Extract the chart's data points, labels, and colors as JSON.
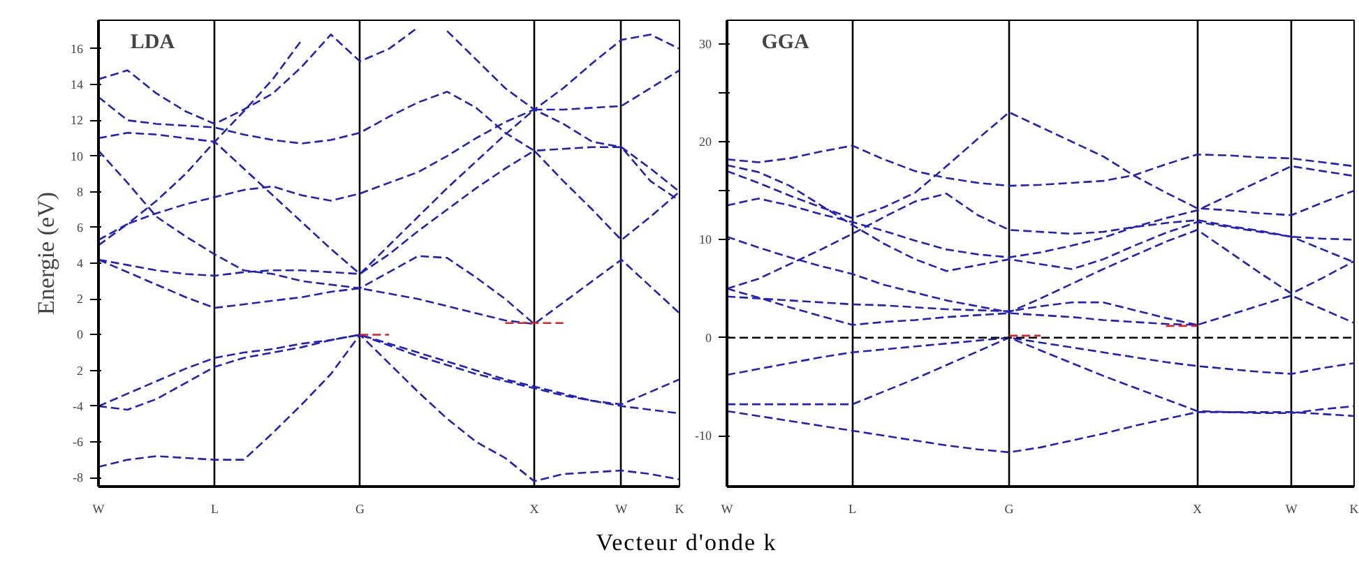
{
  "chart_data": [
    {
      "type": "line",
      "title": "LDA",
      "xlabel": "Vecteur d'onde k",
      "ylabel": "Energie (eV)",
      "line_style": "dashed",
      "grid": "x",
      "categories": [
        "W",
        null,
        null,
        null,
        "L",
        null,
        null,
        null,
        null,
        "G",
        null,
        null,
        null,
        null,
        null,
        "X",
        null,
        null,
        "W",
        null,
        "K"
      ],
      "ylim": [
        -8.5,
        17.6
      ],
      "yticks": [
        -8,
        -6,
        -4,
        {
          "value": -2,
          "label": "2"
        },
        0,
        2,
        4,
        6,
        8,
        10,
        12,
        14,
        16
      ],
      "series": [
        {
          "color": "#2020c0",
          "values": [
            -7.4,
            -7.0,
            -6.8,
            -6.9,
            -7.0,
            -7.0,
            -5.5,
            -3.9,
            -2.2,
            0,
            -1.6,
            -3.2,
            -4.7,
            -6.0,
            -6.9,
            -8.2,
            -7.8,
            -7.7,
            -7.6,
            -7.8,
            -8.1
          ]
        },
        {
          "color": "#2020c0",
          "values": [
            -4.0,
            -3.3,
            -2.6,
            -1.9,
            -1.3,
            -1.0,
            -0.8,
            -0.5,
            -0.3,
            0,
            -0.5,
            -1.0,
            -1.5,
            -2.0,
            -2.5,
            -2.9,
            -3.3,
            -3.7,
            -4.0,
            -4.2,
            -4.4
          ]
        },
        {
          "color": "#2020c0",
          "values": [
            -4.0,
            -4.2,
            -3.6,
            -2.7,
            -1.8,
            -1.3,
            -1.0,
            -0.7,
            -0.3,
            0,
            -0.6,
            -1.2,
            -1.7,
            -2.2,
            -2.6,
            -3.0,
            -3.4,
            -3.7,
            -3.9,
            -3.2,
            -2.5
          ]
        },
        {
          "color": "#2020c0",
          "values": [
            4.2,
            3.5,
            2.8,
            2.1,
            1.5,
            1.7,
            1.9,
            2.1,
            2.4,
            2.6,
            2.3,
            2.0,
            1.6,
            1.2,
            0.8,
            0.6,
            1.8,
            3.0,
            4.2,
            2.7,
            1.2
          ]
        },
        {
          "color": "#2020c0",
          "values": [
            4.2,
            3.9,
            3.6,
            3.4,
            3.3,
            3.5,
            3.6,
            3.6,
            3.5,
            3.4,
            4.5,
            5.8,
            7.0,
            8.2,
            9.3,
            10.3,
            8.6,
            7.0,
            5.3,
            6.6,
            8.0
          ]
        },
        {
          "color": "#2020c0",
          "values": [
            5.3,
            6.2,
            7.5,
            9.0,
            10.8,
            12.5,
            14.3,
            16.5,
            null,
            null,
            null,
            null,
            null,
            null,
            null,
            null,
            null,
            null,
            null,
            null,
            null
          ]
        },
        {
          "color": "#2020c0",
          "values": [
            11.0,
            11.3,
            11.2,
            11.0,
            10.8,
            9.3,
            7.8,
            6.3,
            4.8,
            3.4,
            5.0,
            6.6,
            8.2,
            9.7,
            11.2,
            12.6,
            12.6,
            12.7,
            12.8,
            13.8,
            14.8
          ]
        },
        {
          "color": "#2020c0",
          "values": [
            10.3,
            8.5,
            6.6,
            5.5,
            4.5,
            3.6,
            3.4,
            3.0,
            2.8,
            2.6,
            3.5,
            4.4,
            4.3,
            3.2,
            2.0,
            0.6,
            null,
            null,
            null,
            null,
            null
          ]
        },
        {
          "color": "#2020c0",
          "values": [
            5.0,
            6.2,
            6.8,
            7.3,
            7.7,
            8.1,
            8.3,
            7.8,
            7.5,
            7.9,
            8.5,
            9.1,
            10.0,
            11.0,
            11.9,
            12.6,
            11.8,
            10.8,
            10.5,
            9.3,
            8.0
          ]
        },
        {
          "color": "#2020c0",
          "values": [
            13.3,
            12.0,
            11.8,
            11.7,
            11.6,
            11.2,
            10.9,
            10.7,
            10.9,
            11.3,
            12.2,
            13.0,
            13.6,
            12.7,
            11.3,
            10.3,
            10.4,
            10.5,
            10.5,
            8.6,
            7.5
          ]
        },
        {
          "color": "#2020c0",
          "values": [
            14.3,
            14.8,
            13.5,
            12.5,
            11.8,
            12.6,
            13.5,
            15.0,
            16.8,
            15.3,
            16.0,
            17.2,
            null,
            null,
            null,
            null,
            null,
            null,
            null,
            null,
            null
          ]
        },
        {
          "color": "#2020c0",
          "values": [
            null,
            null,
            null,
            null,
            null,
            null,
            null,
            null,
            null,
            null,
            null,
            null,
            17.0,
            15.4,
            13.8,
            12.6,
            13.8,
            15.2,
            16.5,
            16.8,
            16.0
          ]
        },
        {
          "color": "#e02020",
          "values": [
            null,
            null,
            null,
            null,
            null,
            null,
            null,
            null,
            null,
            0,
            0,
            null,
            null,
            null,
            null,
            null,
            null,
            null,
            null,
            null,
            null
          ]
        },
        {
          "color": "#e02020",
          "values": [
            null,
            null,
            null,
            null,
            null,
            null,
            null,
            null,
            null,
            null,
            null,
            null,
            null,
            null,
            0.65,
            0.65,
            0.65,
            null,
            null,
            null,
            null
          ]
        }
      ]
    },
    {
      "type": "line",
      "title": "GGA",
      "line_style": "dashed",
      "grid": "x",
      "categories": [
        "W",
        null,
        null,
        null,
        "L",
        null,
        null,
        null,
        null,
        "G",
        null,
        null,
        null,
        null,
        null,
        "X",
        null,
        null,
        "W",
        null,
        "K"
      ],
      "ylim": [
        -15.2,
        32.4
      ],
      "yticks": [
        -10,
        0,
        10,
        {
          "value": 15,
          "label": null
        },
        20,
        {
          "value": 25,
          "label": null
        },
        30
      ],
      "ref_lines": [
        {
          "axis": "y",
          "value": 0,
          "color": "#000000",
          "line_style": "dashed"
        }
      ],
      "series": [
        {
          "color": "#2020c0",
          "values": [
            -7.5,
            -8.0,
            -8.5,
            -9.0,
            -9.5,
            -10.0,
            -10.5,
            -11.0,
            -11.4,
            -11.7,
            -11.2,
            -10.5,
            -9.8,
            -9.0,
            -8.3,
            -7.6,
            -7.6,
            -7.6,
            -7.6,
            -7.8,
            -8.0
          ]
        },
        {
          "color": "#2020c0",
          "values": [
            -6.8,
            -6.8,
            -6.8,
            -6.8,
            -6.8,
            -5.5,
            -4.2,
            -2.8,
            -1.4,
            0,
            -1.3,
            -2.6,
            -3.9,
            -5.1,
            -6.3,
            -7.5,
            -7.6,
            -7.7,
            -7.7,
            -7.3,
            -7.0
          ]
        },
        {
          "color": "#2020c0",
          "values": [
            -3.8,
            -3.2,
            -2.6,
            -2.0,
            -1.5,
            -1.2,
            -0.9,
            -0.6,
            -0.3,
            0,
            -0.5,
            -1.0,
            -1.5,
            -2.0,
            -2.5,
            -2.9,
            -3.2,
            -3.5,
            -3.7,
            -3.1,
            -2.6
          ]
        },
        {
          "color": "#2020c0",
          "values": [
            5.0,
            4.1,
            3.1,
            2.2,
            1.3,
            1.6,
            1.8,
            2.1,
            2.3,
            2.5,
            2.3,
            2.1,
            1.8,
            1.6,
            1.4,
            1.3,
            2.3,
            3.3,
            4.3,
            2.9,
            1.5
          ]
        },
        {
          "color": "#2020c0",
          "values": [
            4.2,
            4.0,
            3.8,
            3.6,
            3.4,
            3.3,
            3.1,
            2.9,
            2.8,
            2.7,
            3.2,
            3.6,
            3.6,
            2.8,
            2.0,
            1.3,
            null,
            null,
            null,
            null,
            null
          ]
        },
        {
          "color": "#2020c0",
          "values": [
            5.0,
            6.0,
            7.5,
            9.0,
            10.6,
            12.3,
            13.9,
            14.7,
            12.5,
            11.0,
            10.8,
            10.6,
            10.8,
            11.3,
            11.7,
            12.0,
            11.4,
            10.9,
            10.3,
            9.0,
            7.7
          ]
        },
        {
          "color": "#2020c0",
          "values": [
            10.3,
            9.2,
            8.2,
            7.3,
            6.5,
            5.4,
            4.6,
            3.8,
            3.2,
            2.6,
            4.0,
            5.5,
            7.0,
            8.4,
            9.8,
            11.0,
            8.8,
            6.6,
            4.5,
            6.1,
            7.8
          ]
        },
        {
          "color": "#2020c0",
          "values": [
            17.6,
            16.9,
            15.5,
            13.5,
            11.5,
            9.6,
            8.0,
            6.8,
            7.4,
            8.0,
            7.5,
            7.0,
            8.0,
            9.4,
            10.7,
            11.8,
            11.3,
            10.8,
            10.3,
            10.1,
            10.0
          ]
        },
        {
          "color": "#2020c0",
          "values": [
            18.2,
            17.9,
            18.3,
            19.0,
            19.6,
            18.2,
            17.0,
            16.3,
            15.8,
            15.5,
            15.6,
            15.8,
            16.0,
            16.6,
            17.7,
            18.7,
            18.6,
            18.4,
            18.3,
            17.9,
            17.5
          ]
        },
        {
          "color": "#2020c0",
          "values": [
            17.0,
            15.8,
            14.5,
            13.3,
            12.2,
            13.3,
            14.8,
            17.5,
            20.3,
            23.0,
            21.5,
            20.0,
            18.5,
            16.5,
            14.8,
            13.2,
            13.0,
            12.7,
            12.5,
            13.8,
            15.0
          ]
        },
        {
          "color": "#2020c0",
          "values": [
            13.5,
            14.2,
            13.5,
            12.6,
            11.8,
            10.9,
            9.9,
            9.0,
            8.5,
            8.2,
            8.7,
            9.4,
            10.2,
            11.3,
            12.2,
            13.0,
            14.5,
            16.0,
            17.5,
            17.0,
            16.5
          ]
        },
        {
          "color": "#e02020",
          "values": [
            null,
            null,
            null,
            null,
            null,
            null,
            null,
            null,
            null,
            0.2,
            0.2,
            null,
            null,
            null,
            null,
            null,
            null,
            null,
            null,
            null,
            null
          ]
        },
        {
          "color": "#e02020",
          "values": [
            null,
            null,
            null,
            null,
            null,
            null,
            null,
            null,
            null,
            null,
            null,
            null,
            null,
            null,
            1.2,
            1.2,
            null,
            null,
            null,
            null,
            null
          ]
        }
      ]
    }
  ]
}
